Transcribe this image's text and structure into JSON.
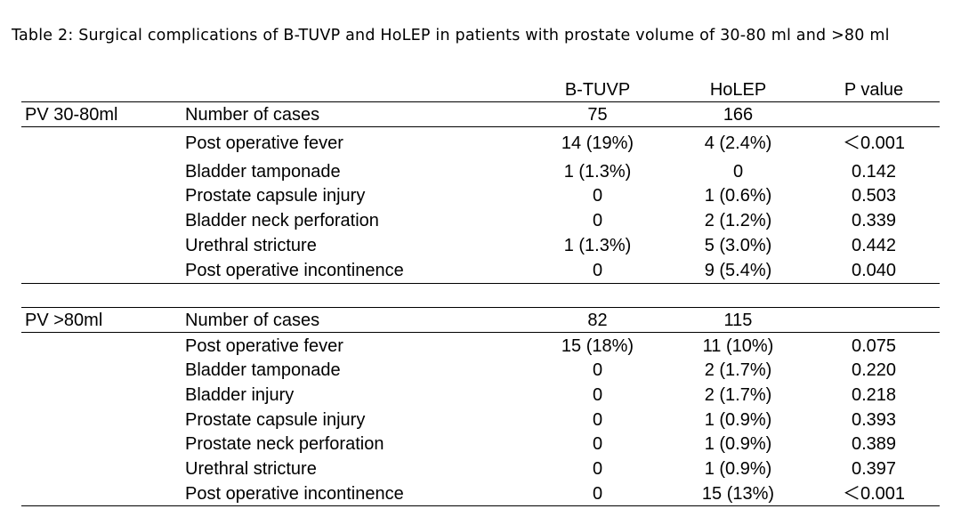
{
  "caption": "Table 2: Surgical complications of B-TUVP and HoLEP in patients with prostate volume of 30-80 ml and >80 ml",
  "columns": [
    "B-TUVP",
    "HoLEP",
    "P value"
  ],
  "sections": [
    {
      "group": "PV 30-80ml",
      "rows": [
        {
          "label": "Number of cases",
          "b_tuvp": "75",
          "holep": "166",
          "p": ""
        },
        {
          "label": "Post operative fever",
          "b_tuvp": "14 (19%)",
          "holep": "4 (2.4%)",
          "p": "＜0.001"
        },
        {
          "label": "Bladder tamponade",
          "b_tuvp": "1 (1.3%)",
          "holep": "0",
          "p": "0.142"
        },
        {
          "label": "Prostate capsule injury",
          "b_tuvp": "0",
          "holep": "1 (0.6%)",
          "p": "0.503"
        },
        {
          "label": "Bladder neck perforation",
          "b_tuvp": "0",
          "holep": "2 (1.2%)",
          "p": "0.339"
        },
        {
          "label": "Urethral stricture",
          "b_tuvp": "1 (1.3%)",
          "holep": "5 (3.0%)",
          "p": "0.442"
        },
        {
          "label": "Post operative incontinence",
          "b_tuvp": "0",
          "holep": "9 (5.4%)",
          "p": "0.040"
        }
      ]
    },
    {
      "group": "PV >80ml",
      "rows": [
        {
          "label": "Number of cases",
          "b_tuvp": "82",
          "holep": "115",
          "p": ""
        },
        {
          "label": "Post operative fever",
          "b_tuvp": "15 (18%)",
          "holep": "11 (10%)",
          "p": "0.075"
        },
        {
          "label": "Bladder tamponade",
          "b_tuvp": "0",
          "holep": "2 (1.7%)",
          "p": "0.220"
        },
        {
          "label": "Bladder injury",
          "b_tuvp": "0",
          "holep": "2 (1.7%)",
          "p": "0.218"
        },
        {
          "label": "Prostate capsule injury",
          "b_tuvp": "0",
          "holep": "1 (0.9%)",
          "p": "0.393"
        },
        {
          "label": "Prostate neck perforation",
          "b_tuvp": "0",
          "holep": "1 (0.9%)",
          "p": "0.389"
        },
        {
          "label": "Urethral stricture",
          "b_tuvp": "0",
          "holep": "1 (0.9%)",
          "p": "0.397"
        },
        {
          "label": "Post operative incontinence",
          "b_tuvp": "0",
          "holep": "15 (13%)",
          "p": "＜0.001"
        }
      ]
    }
  ]
}
